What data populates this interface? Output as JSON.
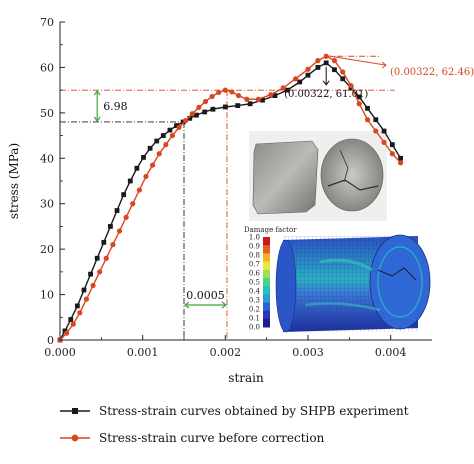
{
  "chart_data": {
    "type": "line",
    "xlabel": "strain",
    "ylabel": "stress (MPa)",
    "xlim": [
      0,
      0.0045
    ],
    "ylim": [
      0,
      70
    ],
    "x_ticks": [
      "0.000",
      "0.001",
      "0.002",
      "0.003",
      "0.004"
    ],
    "y_ticks": [
      "0",
      "10",
      "20",
      "30",
      "40",
      "50",
      "60",
      "70"
    ],
    "legend_position": "bottom",
    "series": [
      {
        "name": "Stress-strain curves obtained by SHPB experiment",
        "color": "#1a1a1a",
        "marker": "square",
        "x": [
          0.0,
          6e-05,
          0.00013,
          0.00021,
          0.00029,
          0.00037,
          0.00045,
          0.00053,
          0.00061,
          0.00069,
          0.00077,
          0.00085,
          0.00093,
          0.00101,
          0.00109,
          0.00117,
          0.00125,
          0.00133,
          0.00141,
          0.00149,
          0.00157,
          0.00165,
          0.00175,
          0.00185,
          0.002,
          0.00215,
          0.0023,
          0.00245,
          0.0026,
          0.00275,
          0.0029,
          0.003,
          0.00312,
          0.00322,
          0.00332,
          0.00342,
          0.00352,
          0.00362,
          0.00372,
          0.00382,
          0.00392,
          0.00402,
          0.00412
        ],
        "y": [
          0.0,
          2.0,
          4.5,
          7.5,
          11.0,
          14.5,
          18.0,
          21.5,
          25.0,
          28.5,
          32.0,
          35.0,
          37.8,
          40.2,
          42.2,
          43.8,
          45.0,
          46.2,
          47.2,
          48.0,
          48.8,
          49.5,
          50.2,
          50.8,
          51.3,
          51.6,
          52.0,
          52.8,
          53.8,
          55.0,
          56.8,
          58.3,
          60.0,
          61.01,
          59.5,
          57.5,
          55.5,
          53.5,
          51.0,
          48.5,
          46.0,
          43.0,
          40.0
        ]
      },
      {
        "name": "Stress-strain curve before correction",
        "color": "#d9461f",
        "marker": "circle",
        "x": [
          0.0,
          8e-05,
          0.00016,
          0.00024,
          0.00032,
          0.0004,
          0.00048,
          0.00056,
          0.00064,
          0.00072,
          0.0008,
          0.00088,
          0.00096,
          0.00104,
          0.00112,
          0.0012,
          0.00128,
          0.00136,
          0.00144,
          0.00152,
          0.0016,
          0.00168,
          0.00176,
          0.00184,
          0.00192,
          0.002,
          0.00208,
          0.00216,
          0.00226,
          0.0024,
          0.00255,
          0.0027,
          0.00285,
          0.003,
          0.00312,
          0.00322,
          0.00332,
          0.00342,
          0.00352,
          0.00362,
          0.00372,
          0.00382,
          0.00392,
          0.00402,
          0.00412
        ],
        "y": [
          0.0,
          1.5,
          3.5,
          6.0,
          9.0,
          12.0,
          15.0,
          18.0,
          21.0,
          24.0,
          27.0,
          30.0,
          33.0,
          36.0,
          38.5,
          41.0,
          43.0,
          45.0,
          46.8,
          48.3,
          49.8,
          51.2,
          52.5,
          53.6,
          54.5,
          55.0,
          54.6,
          53.8,
          53.0,
          53.0,
          54.0,
          55.5,
          57.5,
          59.6,
          61.5,
          62.46,
          61.5,
          59.0,
          56.0,
          52.0,
          48.5,
          46.0,
          43.5,
          41.0,
          39.0
        ]
      }
    ],
    "annotations": {
      "stress_gap": "6.98",
      "strain_gap": "0.0005",
      "red_peak": "(0.00322, 62.46)",
      "black_peak": "(0.00322, 61.01)"
    },
    "colorbar": {
      "title": "Damage factor",
      "ticks": [
        "1.0",
        "0.9",
        "0.8",
        "0.7",
        "0.6",
        "0.5",
        "0.4",
        "0.3",
        "0.2",
        "0.1",
        "0.0"
      ],
      "colors": [
        "#c81a1a",
        "#e8601e",
        "#f4b226",
        "#ece83a",
        "#9ee05a",
        "#49d28a",
        "#24c2b8",
        "#2b9ad8",
        "#2d62d2",
        "#2a38b2",
        "#1c1c8a"
      ]
    }
  }
}
